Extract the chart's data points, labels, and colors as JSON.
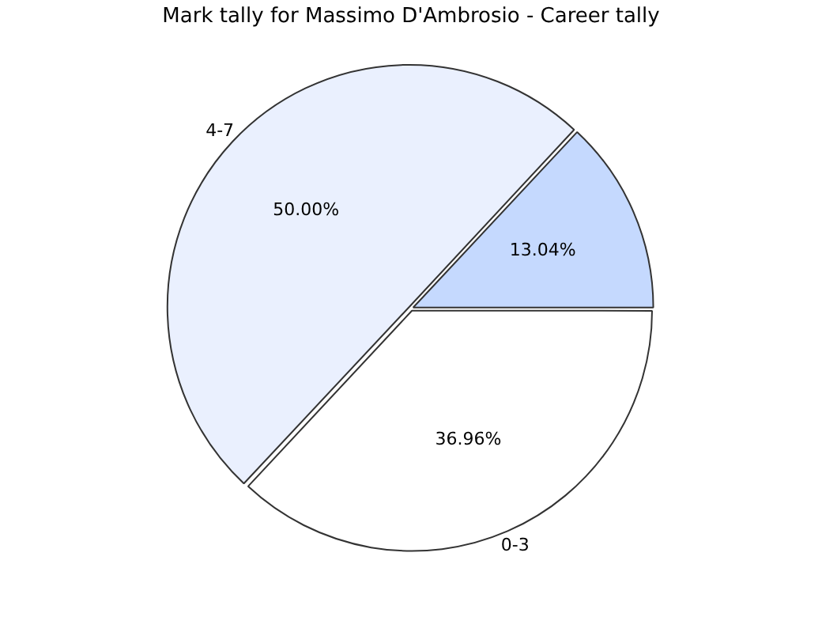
{
  "chart_data": {
    "type": "pie",
    "title": "Mark tally for Massimo D'Ambrosio - Career tally",
    "categories": [
      "0-3",
      "4-7",
      null
    ],
    "values": [
      36.96,
      50.0,
      13.04
    ],
    "value_labels": [
      "36.96%",
      "50.00%",
      "13.04%"
    ],
    "colors": [
      "#ffffff",
      "#eaf0fe",
      "#c5d9fe"
    ],
    "legend": false
  }
}
